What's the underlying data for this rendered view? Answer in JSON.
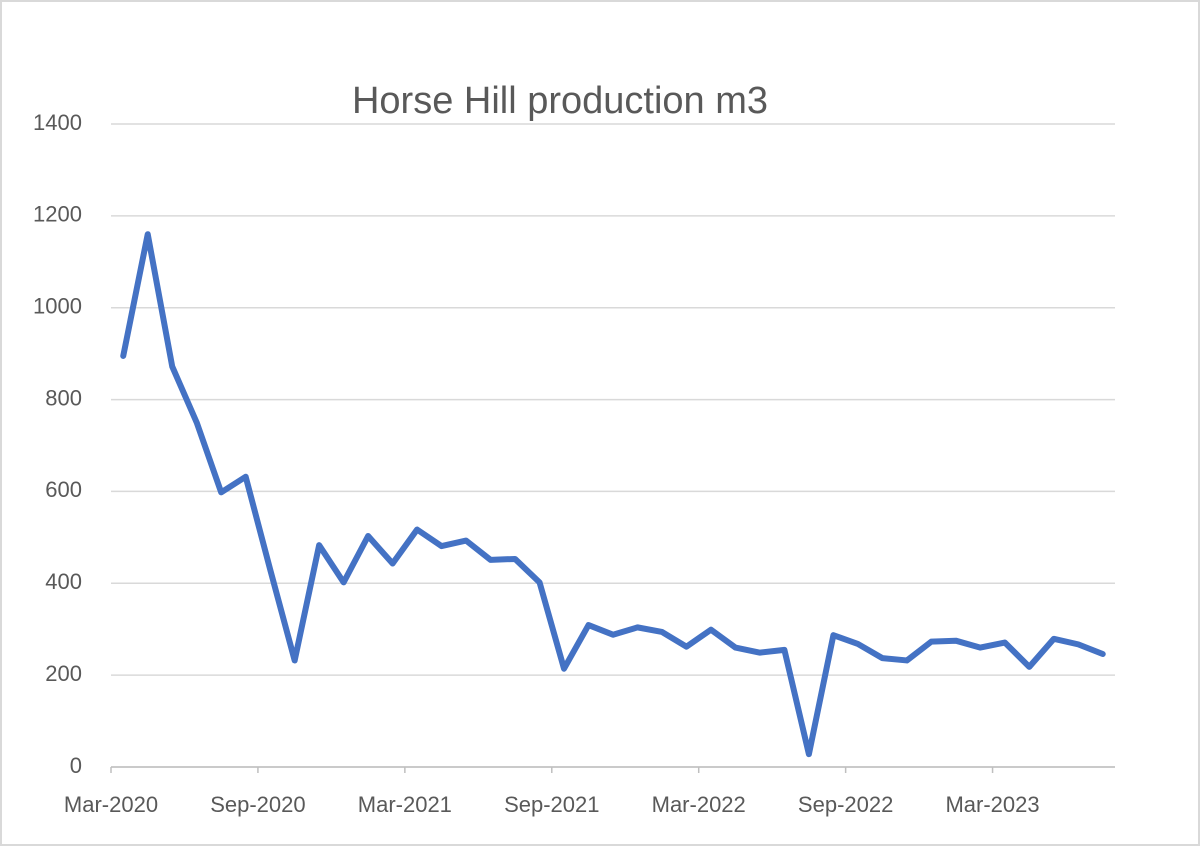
{
  "chart_data": {
    "type": "line",
    "title": "Horse Hill production m3",
    "categories": [
      "Mar-2020",
      null,
      null,
      null,
      null,
      null,
      "Sep-2020",
      null,
      null,
      null,
      null,
      null,
      "Mar-2021",
      null,
      null,
      null,
      null,
      null,
      "Sep-2021",
      null,
      null,
      null,
      null,
      null,
      "Mar-2022",
      null,
      null,
      null,
      null,
      null,
      "Sep-2022",
      null,
      null,
      null,
      null,
      null,
      "Mar-2023",
      null,
      null,
      null,
      null
    ],
    "values": [
      895,
      1160,
      872,
      750,
      598,
      632,
      430,
      232,
      483,
      402,
      503,
      443,
      517,
      481,
      493,
      451,
      453,
      402,
      214,
      309,
      288,
      304,
      294,
      262,
      299,
      260,
      249,
      255,
      28,
      287,
      268,
      237,
      232,
      273,
      275,
      260,
      271,
      218,
      279,
      267,
      246
    ],
    "color": "#4472c4",
    "ylim": [
      0,
      1400
    ],
    "yticks": [
      0,
      200,
      400,
      600,
      800,
      1000,
      1200,
      1400
    ],
    "grid": true
  }
}
